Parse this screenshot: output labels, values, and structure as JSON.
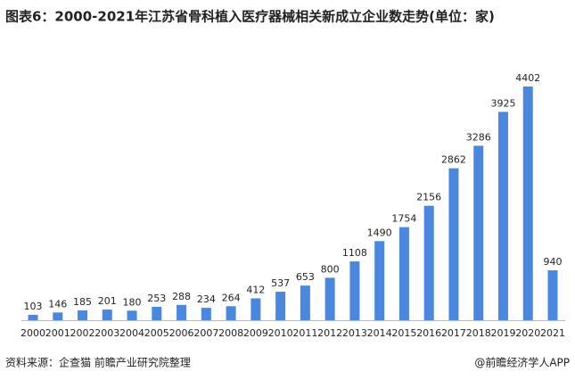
{
  "chart_data": {
    "type": "bar",
    "title": "图表6：2000-2021年江苏省骨科植入医疗器械相关新成立企业数走势(单位：家)",
    "categories": [
      "2000",
      "2001",
      "2002",
      "2003",
      "2004",
      "2005",
      "2006",
      "2007",
      "2008",
      "2009",
      "2010",
      "2011",
      "2012",
      "2013",
      "2014",
      "2015",
      "2016",
      "2017",
      "2018",
      "2019",
      "2020",
      "2021"
    ],
    "values": [
      103,
      146,
      185,
      201,
      180,
      253,
      288,
      234,
      264,
      412,
      537,
      653,
      800,
      1108,
      1490,
      1754,
      2156,
      2862,
      3286,
      3925,
      4402,
      940
    ],
    "color": "#4a88e0",
    "source": "资料来源：企查猫 前瞻产业研究院整理",
    "credit": "@前瞻经济学人APP"
  }
}
